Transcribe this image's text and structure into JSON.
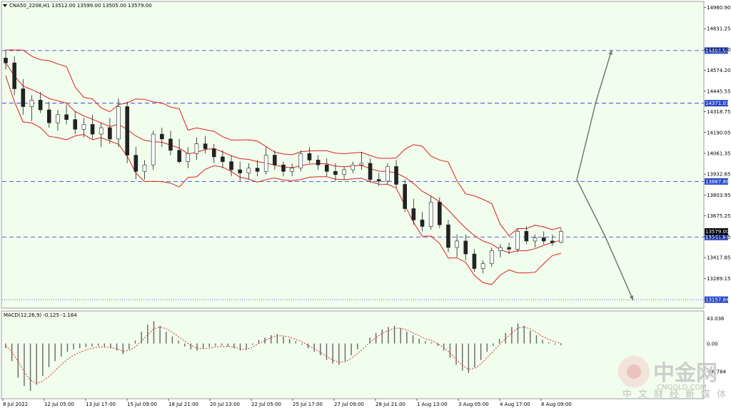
{
  "chart_data": {
    "type": "candlestick",
    "symbol_header": "CNA50_2208,H1  13512.00 13599.00 13505.00 13579.00",
    "current_price": 13579.0,
    "price_axis": {
      "ylim": [
        13110,
        14995
      ],
      "ticks": [
        "14960.90",
        "14831.25",
        "14702.60",
        "14574.20",
        "14445.55",
        "14318.75",
        "14190.05",
        "14061.35",
        "13932.65",
        "13803.95",
        "13675.25",
        "13546.55",
        "13417.85",
        "13289.15"
      ]
    },
    "x_ticks": [
      "8 Jul 2022",
      "12 Jul 05:00",
      "13 Jul 17:00",
      "15 Jul 09:00",
      "18 Jul 21:00",
      "20 Jul 13:00",
      "22 Jul 05:00",
      "25 Jul 17:00",
      "27 Jul 09:00",
      "28 Jul 21:00",
      "1 Aug 13:00",
      "3 Aug 05:00",
      "4 Aug 17:00",
      "8 Aug 09:00"
    ],
    "levels": [
      {
        "value": 14695.99,
        "label": "14695.99",
        "style": "dashed",
        "color": "#2a2ae0"
      },
      {
        "value": 14371.01,
        "label": "14371.01",
        "style": "dashed",
        "color": "#2a2ae0"
      },
      {
        "value": 13887.88,
        "label": "13887.88",
        "style": "dashed",
        "color": "#2a2ae0"
      },
      {
        "value": 13544.84,
        "label": "13544.84",
        "style": "dashed",
        "color": "#2a2ae0"
      },
      {
        "value": 13157.84,
        "label": "13157.84",
        "style": "dotted",
        "color": "#2a2ae0"
      }
    ],
    "price_series_ohlc": [
      [
        14650,
        14700,
        14580,
        14620
      ],
      [
        14620,
        14660,
        14420,
        14460
      ],
      [
        14460,
        14520,
        14300,
        14350
      ],
      [
        14350,
        14420,
        14260,
        14390
      ],
      [
        14390,
        14440,
        14310,
        14330
      ],
      [
        14330,
        14380,
        14220,
        14250
      ],
      [
        14250,
        14330,
        14200,
        14300
      ],
      [
        14300,
        14360,
        14240,
        14270
      ],
      [
        14270,
        14320,
        14180,
        14210
      ],
      [
        14210,
        14280,
        14160,
        14240
      ],
      [
        14240,
        14300,
        14150,
        14180
      ],
      [
        14180,
        14250,
        14100,
        14220
      ],
      [
        14220,
        14280,
        14120,
        14150
      ],
      [
        14150,
        14400,
        14100,
        14350
      ],
      [
        14350,
        14380,
        14000,
        14050
      ],
      [
        14050,
        14100,
        13900,
        13950
      ],
      [
        13950,
        14020,
        13900,
        13990
      ],
      [
        13990,
        14200,
        13960,
        14180
      ],
      [
        14180,
        14220,
        14100,
        14150
      ],
      [
        14150,
        14200,
        14050,
        14080
      ],
      [
        14080,
        14150,
        14000,
        14010
      ],
      [
        14010,
        14100,
        13970,
        14060
      ],
      [
        14060,
        14160,
        14020,
        14120
      ],
      [
        14120,
        14170,
        14060,
        14090
      ],
      [
        14090,
        14120,
        14000,
        14040
      ],
      [
        14040,
        14080,
        13970,
        14010
      ],
      [
        14010,
        14050,
        13920,
        13960
      ],
      [
        13960,
        14010,
        13890,
        13940
      ],
      [
        13940,
        14000,
        13900,
        13970
      ],
      [
        13970,
        14020,
        13920,
        13950
      ],
      [
        13950,
        14100,
        13930,
        14050
      ],
      [
        14050,
        14080,
        13960,
        13990
      ],
      [
        13990,
        14010,
        13920,
        13950
      ],
      [
        13950,
        14000,
        13920,
        13970
      ],
      [
        13970,
        14080,
        13950,
        14060
      ],
      [
        14060,
        14100,
        14000,
        14020
      ],
      [
        14020,
        14050,
        13960,
        13990
      ],
      [
        13990,
        14030,
        13920,
        13950
      ],
      [
        13950,
        14000,
        13890,
        13930
      ],
      [
        13930,
        13980,
        13900,
        13960
      ],
      [
        13960,
        14010,
        13940,
        13990
      ],
      [
        13990,
        14070,
        13960,
        14000
      ],
      [
        14000,
        14030,
        13880,
        13900
      ],
      [
        13900,
        13940,
        13860,
        13890
      ],
      [
        13890,
        14000,
        13870,
        13980
      ],
      [
        13980,
        14020,
        13850,
        13870
      ],
      [
        13870,
        13900,
        13700,
        13720
      ],
      [
        13720,
        13780,
        13620,
        13650
      ],
      [
        13650,
        13700,
        13580,
        13610
      ],
      [
        13610,
        13800,
        13590,
        13760
      ],
      [
        13760,
        13790,
        13600,
        13620
      ],
      [
        13620,
        13650,
        13450,
        13480
      ],
      [
        13480,
        13560,
        13420,
        13520
      ],
      [
        13520,
        13560,
        13400,
        13440
      ],
      [
        13440,
        13470,
        13330,
        13350
      ],
      [
        13350,
        13400,
        13320,
        13380
      ],
      [
        13380,
        13480,
        13360,
        13460
      ],
      [
        13460,
        13500,
        13420,
        13480
      ],
      [
        13480,
        13510,
        13440,
        13470
      ],
      [
        13470,
        13600,
        13450,
        13580
      ],
      [
        13580,
        13610,
        13500,
        13520
      ],
      [
        13520,
        13560,
        13480,
        13540
      ],
      [
        13540,
        13580,
        13500,
        13520
      ],
      [
        13520,
        13560,
        13490,
        13510
      ],
      [
        13512,
        13599,
        13505,
        13579
      ]
    ],
    "bollinger_color": "#e02020",
    "forecast_arrows": [
      {
        "label": "up",
        "path": [
          [
            808,
            252
          ],
          [
            835,
            142
          ],
          [
            857,
            70
          ]
        ]
      },
      {
        "label": "down",
        "path": [
          [
            808,
            252
          ],
          [
            848,
            332
          ],
          [
            887,
            421
          ]
        ]
      }
    ],
    "macd": {
      "label": "MACD(12,26,9) -0.125 -1.164",
      "ticks": [
        "43.036",
        "0.00",
        "-46.784"
      ],
      "histogram": [
        -8,
        -30,
        -58,
        -72,
        -80,
        -70,
        -55,
        -40,
        -30,
        -22,
        -14,
        -10,
        -8,
        -6,
        -5,
        -4,
        -5,
        -8,
        -12,
        -18,
        -10,
        5,
        20,
        32,
        38,
        30,
        20,
        12,
        5,
        -5,
        -10,
        -12,
        -8,
        -6,
        -4,
        -3,
        -5,
        -8,
        -12,
        -10,
        -2,
        6,
        10,
        14,
        16,
        12,
        8,
        4,
        -2,
        -8,
        -14,
        -20,
        -28,
        -34,
        -36,
        -30,
        -20,
        -10,
        0,
        10,
        18,
        24,
        28,
        30,
        26,
        20,
        14,
        8,
        4,
        2,
        -4,
        -12,
        -24,
        -36,
        -46,
        -50,
        -40,
        -28,
        -14,
        -4,
        8,
        18,
        28,
        34,
        30,
        22,
        14,
        6,
        2,
        -2,
        -3
      ],
      "signal": [
        -4,
        -14,
        -30,
        -48,
        -62,
        -68,
        -64,
        -56,
        -46,
        -36,
        -27,
        -20,
        -15,
        -11,
        -8,
        -6,
        -6,
        -7,
        -9,
        -13,
        -12,
        -6,
        4,
        15,
        25,
        28,
        25,
        19,
        12,
        4,
        -3,
        -8,
        -9,
        -8,
        -6,
        -5,
        -5,
        -6,
        -9,
        -10,
        -6,
        0,
        5,
        10,
        13,
        13,
        11,
        7,
        3,
        -3,
        -9,
        -15,
        -22,
        -28,
        -32,
        -31,
        -25,
        -17,
        -8,
        2,
        10,
        17,
        22,
        26,
        26,
        23,
        18,
        13,
        8,
        5,
        0,
        -7,
        -16,
        -27,
        -37,
        -44,
        -42,
        -35,
        -24,
        -13,
        -2,
        8,
        18,
        26,
        28,
        25,
        19,
        12,
        7,
        3,
        0
      ]
    },
    "watermark": {
      "brand": "中金网",
      "site": "CNGOLD.COM",
      "tagline": "中文财经新媒体"
    }
  }
}
